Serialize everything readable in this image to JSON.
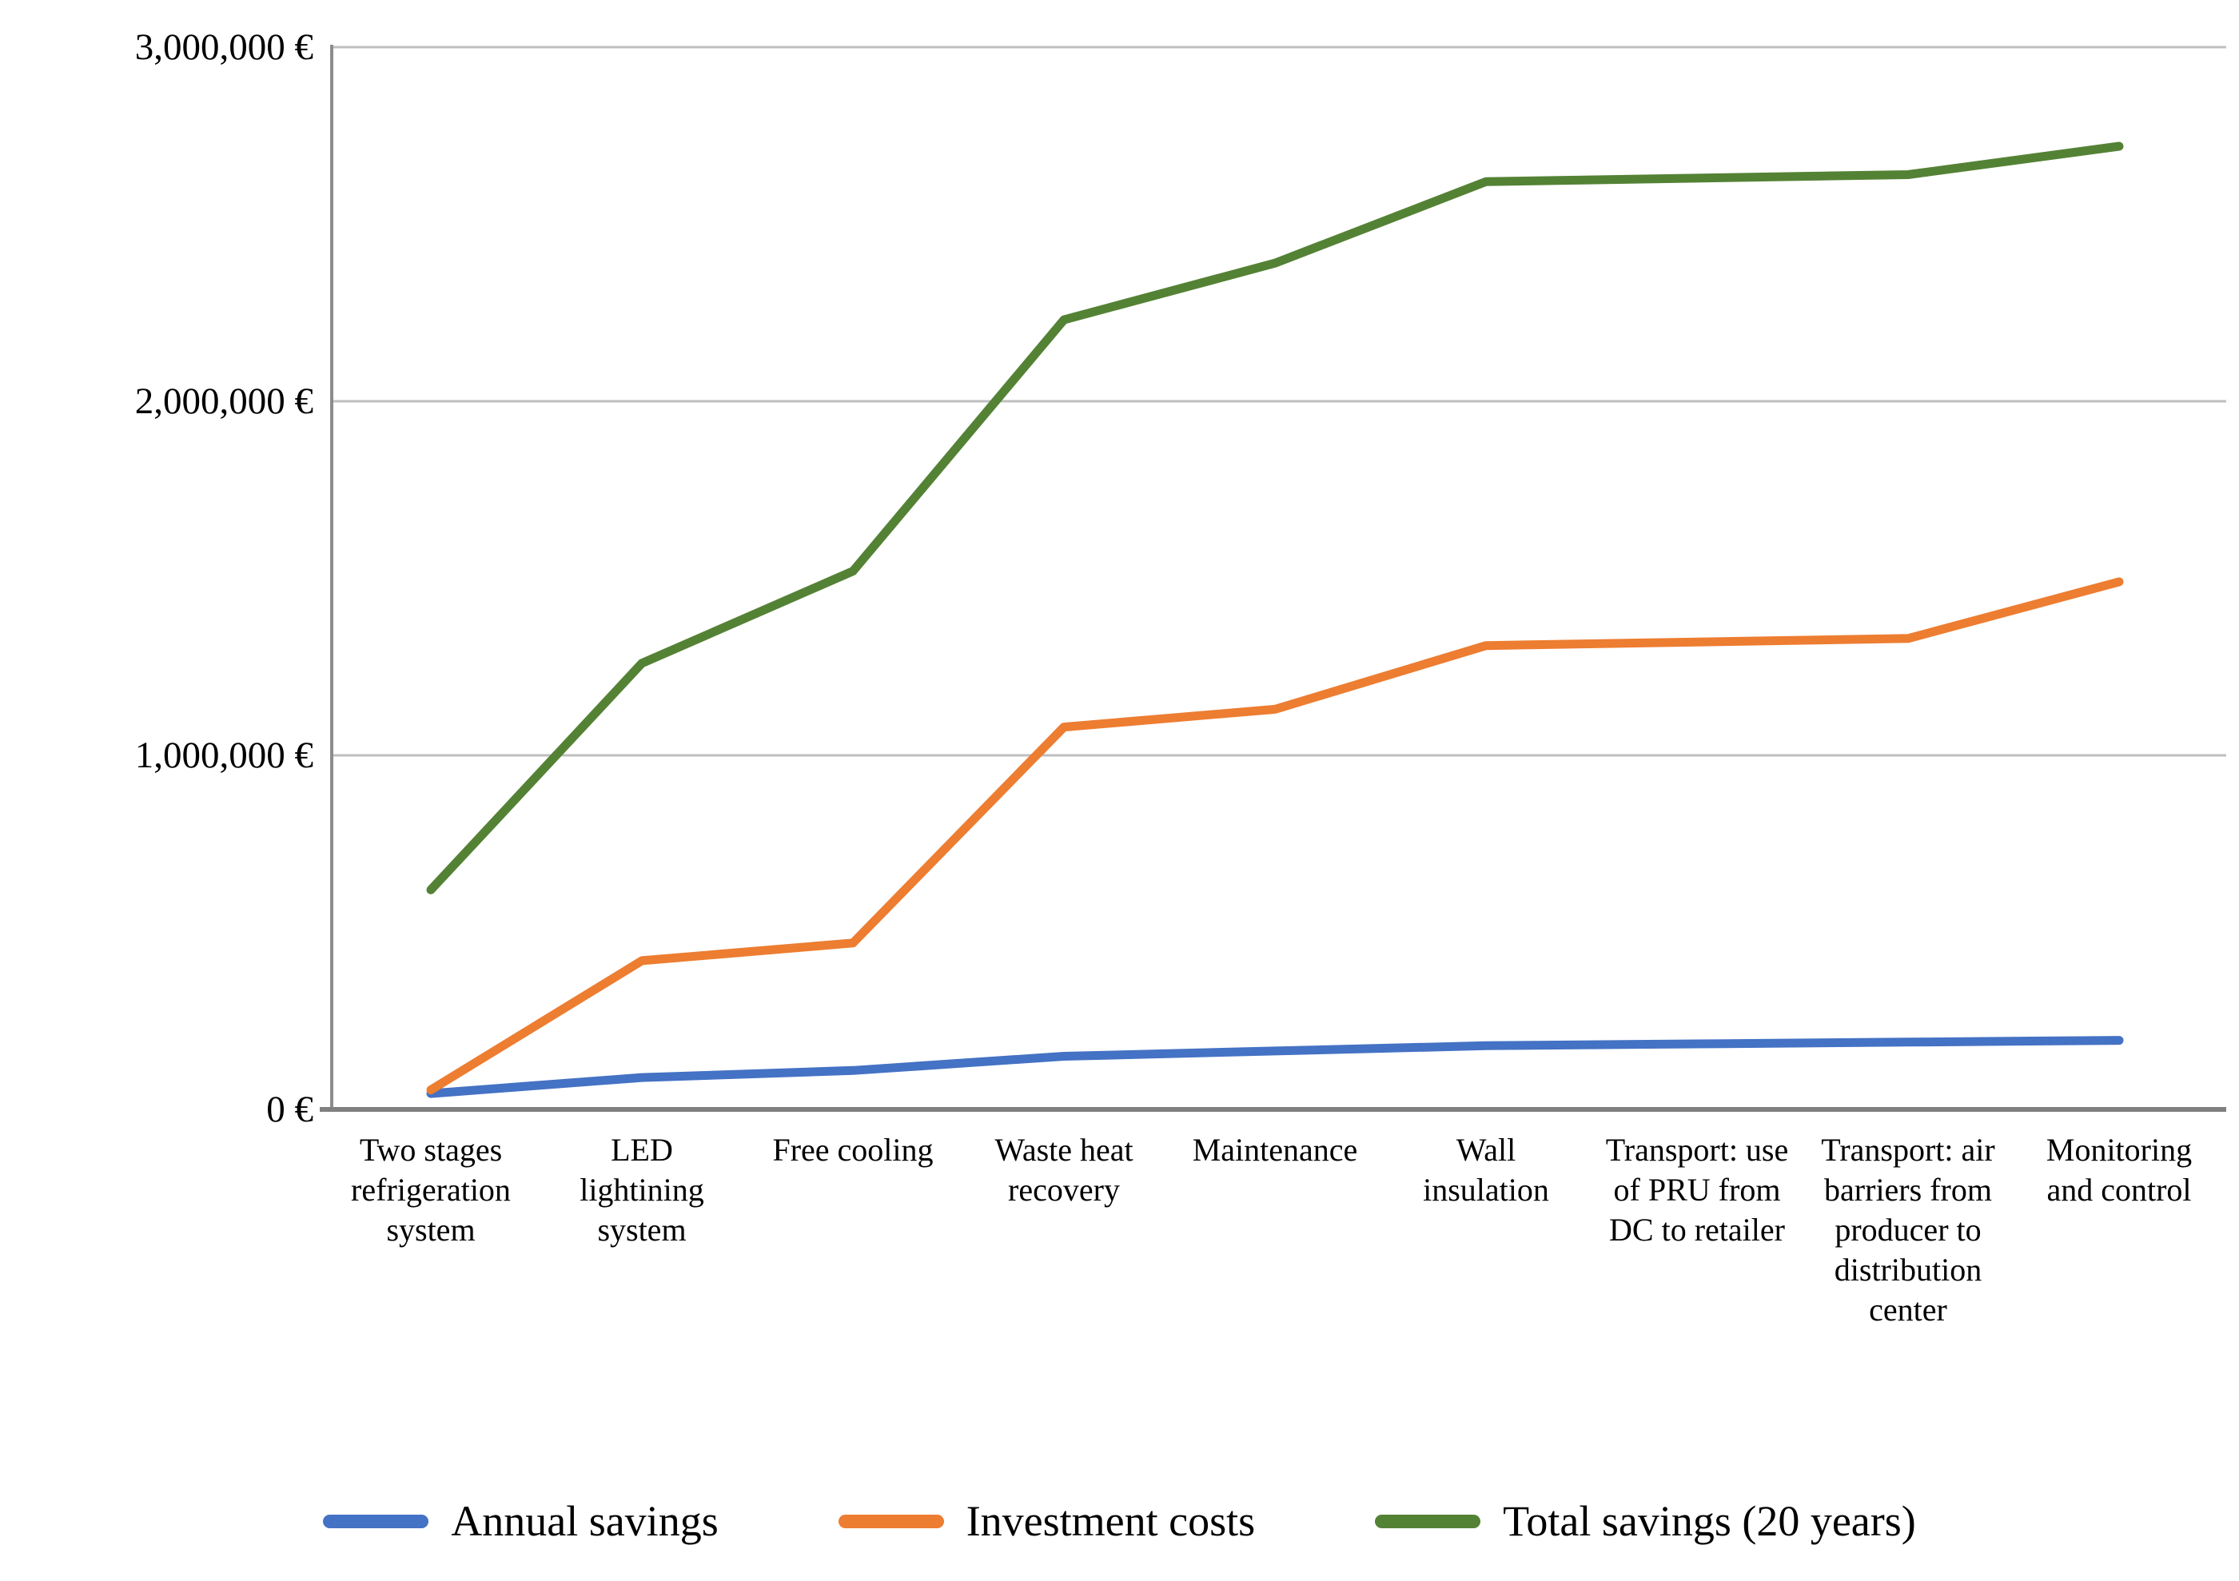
{
  "chart_data": {
    "type": "line",
    "title": "",
    "xlabel": "",
    "ylabel": "",
    "categories": [
      "Two stages refrigeration system",
      "LED lightining system",
      "Free cooling",
      "Waste heat recovery",
      "Maintenance",
      "Wall insulation",
      "Transport: use of PRU from DC to retailer",
      "Transport: air barriers from producer to distribution center",
      "Monitoring and control"
    ],
    "series": [
      {
        "name": "Annual savings",
        "color": "#4472C4",
        "values": [
          45000,
          90000,
          110000,
          150000,
          165000,
          180000,
          185000,
          190000,
          195000
        ]
      },
      {
        "name": "Investment costs",
        "color": "#ED7D31",
        "values": [
          55000,
          420000,
          470000,
          1080000,
          1130000,
          1310000,
          1320000,
          1330000,
          1490000
        ]
      },
      {
        "name": "Total savings (20 years)",
        "color": "#548235",
        "values": [
          620000,
          1260000,
          1520000,
          2230000,
          2390000,
          2620000,
          2630000,
          2640000,
          2720000
        ]
      }
    ],
    "y_axis": {
      "min": 0,
      "max": 3000000,
      "tick_interval": 1000000,
      "tick_labels": [
        "0 €",
        "1,000,000 €",
        "2,000,000 €",
        "3,000,000 €"
      ]
    },
    "grid": true,
    "legend_position": "bottom",
    "gridline_color": "#BFBFBF",
    "axis_color": "#8C8C8C"
  }
}
